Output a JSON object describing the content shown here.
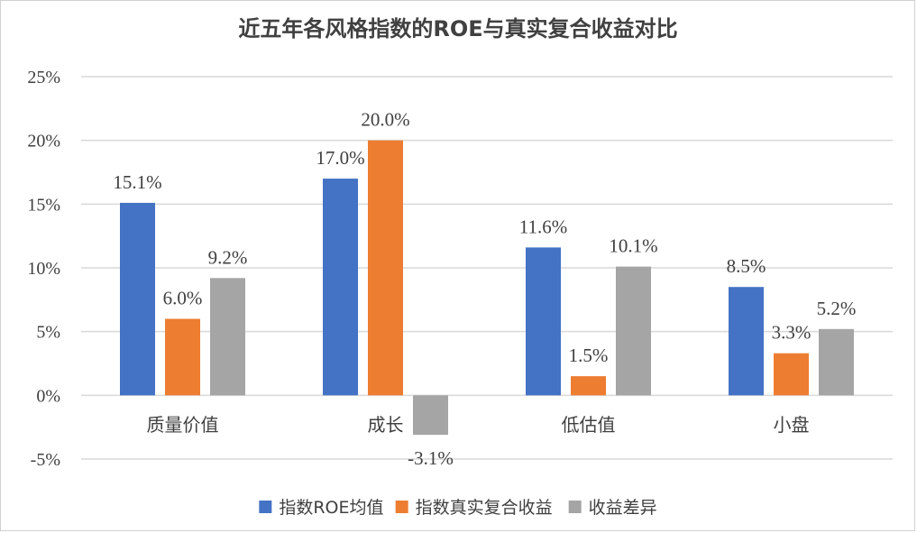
{
  "chart_data": {
    "type": "bar",
    "title": "近五年各风格指数的ROE与真实复合收益对比",
    "categories": [
      "质量价值",
      "成长",
      "低估值",
      "小盘"
    ],
    "series": [
      {
        "name": "指数ROE均值",
        "color": "#4472C4",
        "values": [
          15.1,
          17.0,
          11.6,
          8.5
        ],
        "labels": [
          "15.1%",
          "17.0%",
          "11.6%",
          "8.5%"
        ]
      },
      {
        "name": "指数真实复合收益",
        "color": "#ED7D31",
        "values": [
          6.0,
          20.0,
          1.5,
          3.3
        ],
        "labels": [
          "6.0%",
          "20.0%",
          "1.5%",
          "3.3%"
        ]
      },
      {
        "name": "收益差异",
        "color": "#A5A5A5",
        "values": [
          9.2,
          -3.1,
          10.1,
          5.2
        ],
        "labels": [
          "9.2%",
          "-3.1%",
          "10.1%",
          "5.2%"
        ]
      }
    ],
    "ylim": [
      -5,
      25
    ],
    "yticks": [
      25,
      20,
      15,
      10,
      5,
      0,
      -5
    ],
    "ytick_labels": [
      "25%",
      "20%",
      "15%",
      "10%",
      "5%",
      "0%",
      "-5%"
    ],
    "xlabel": "",
    "ylabel": "",
    "grid": true,
    "legend_position": "bottom"
  }
}
